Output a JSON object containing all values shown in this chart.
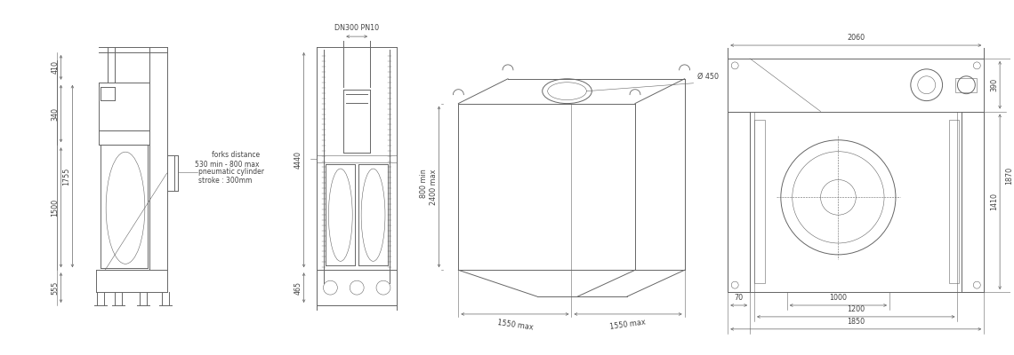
{
  "bg_color": "#ffffff",
  "lc": "#666666",
  "tc": "#444444",
  "lw_main": 0.7,
  "lw_dim": 0.5,
  "lw_thin": 0.4,
  "fs_dim": 5.8,
  "fs_note": 5.5,
  "view1": {
    "note1": "pneumatic cylinder\nstroke : 300mm",
    "dim_410": "410",
    "dim_340": "340",
    "dim_1500": "1500",
    "dim_1755": "1755",
    "dim_555": "555"
  },
  "view2": {
    "dim_DN300": "DN300 PN10",
    "note_forks": "forks distance\n530 min - 800 max",
    "dim_4440": "4440",
    "dim_465": "465"
  },
  "view3": {
    "dim_diam": "Ø 450",
    "dim_h1": "800 min",
    "dim_h2": "2400 max",
    "dim_w1": "1550 max",
    "dim_w2": "1550 max"
  },
  "view4": {
    "dim_2060": "2060",
    "dim_390": "390",
    "dim_1410": "1410",
    "dim_1870": "1870",
    "dim_70": "70",
    "dim_1000": "1000",
    "dim_1200": "1200",
    "dim_1850": "1850"
  }
}
